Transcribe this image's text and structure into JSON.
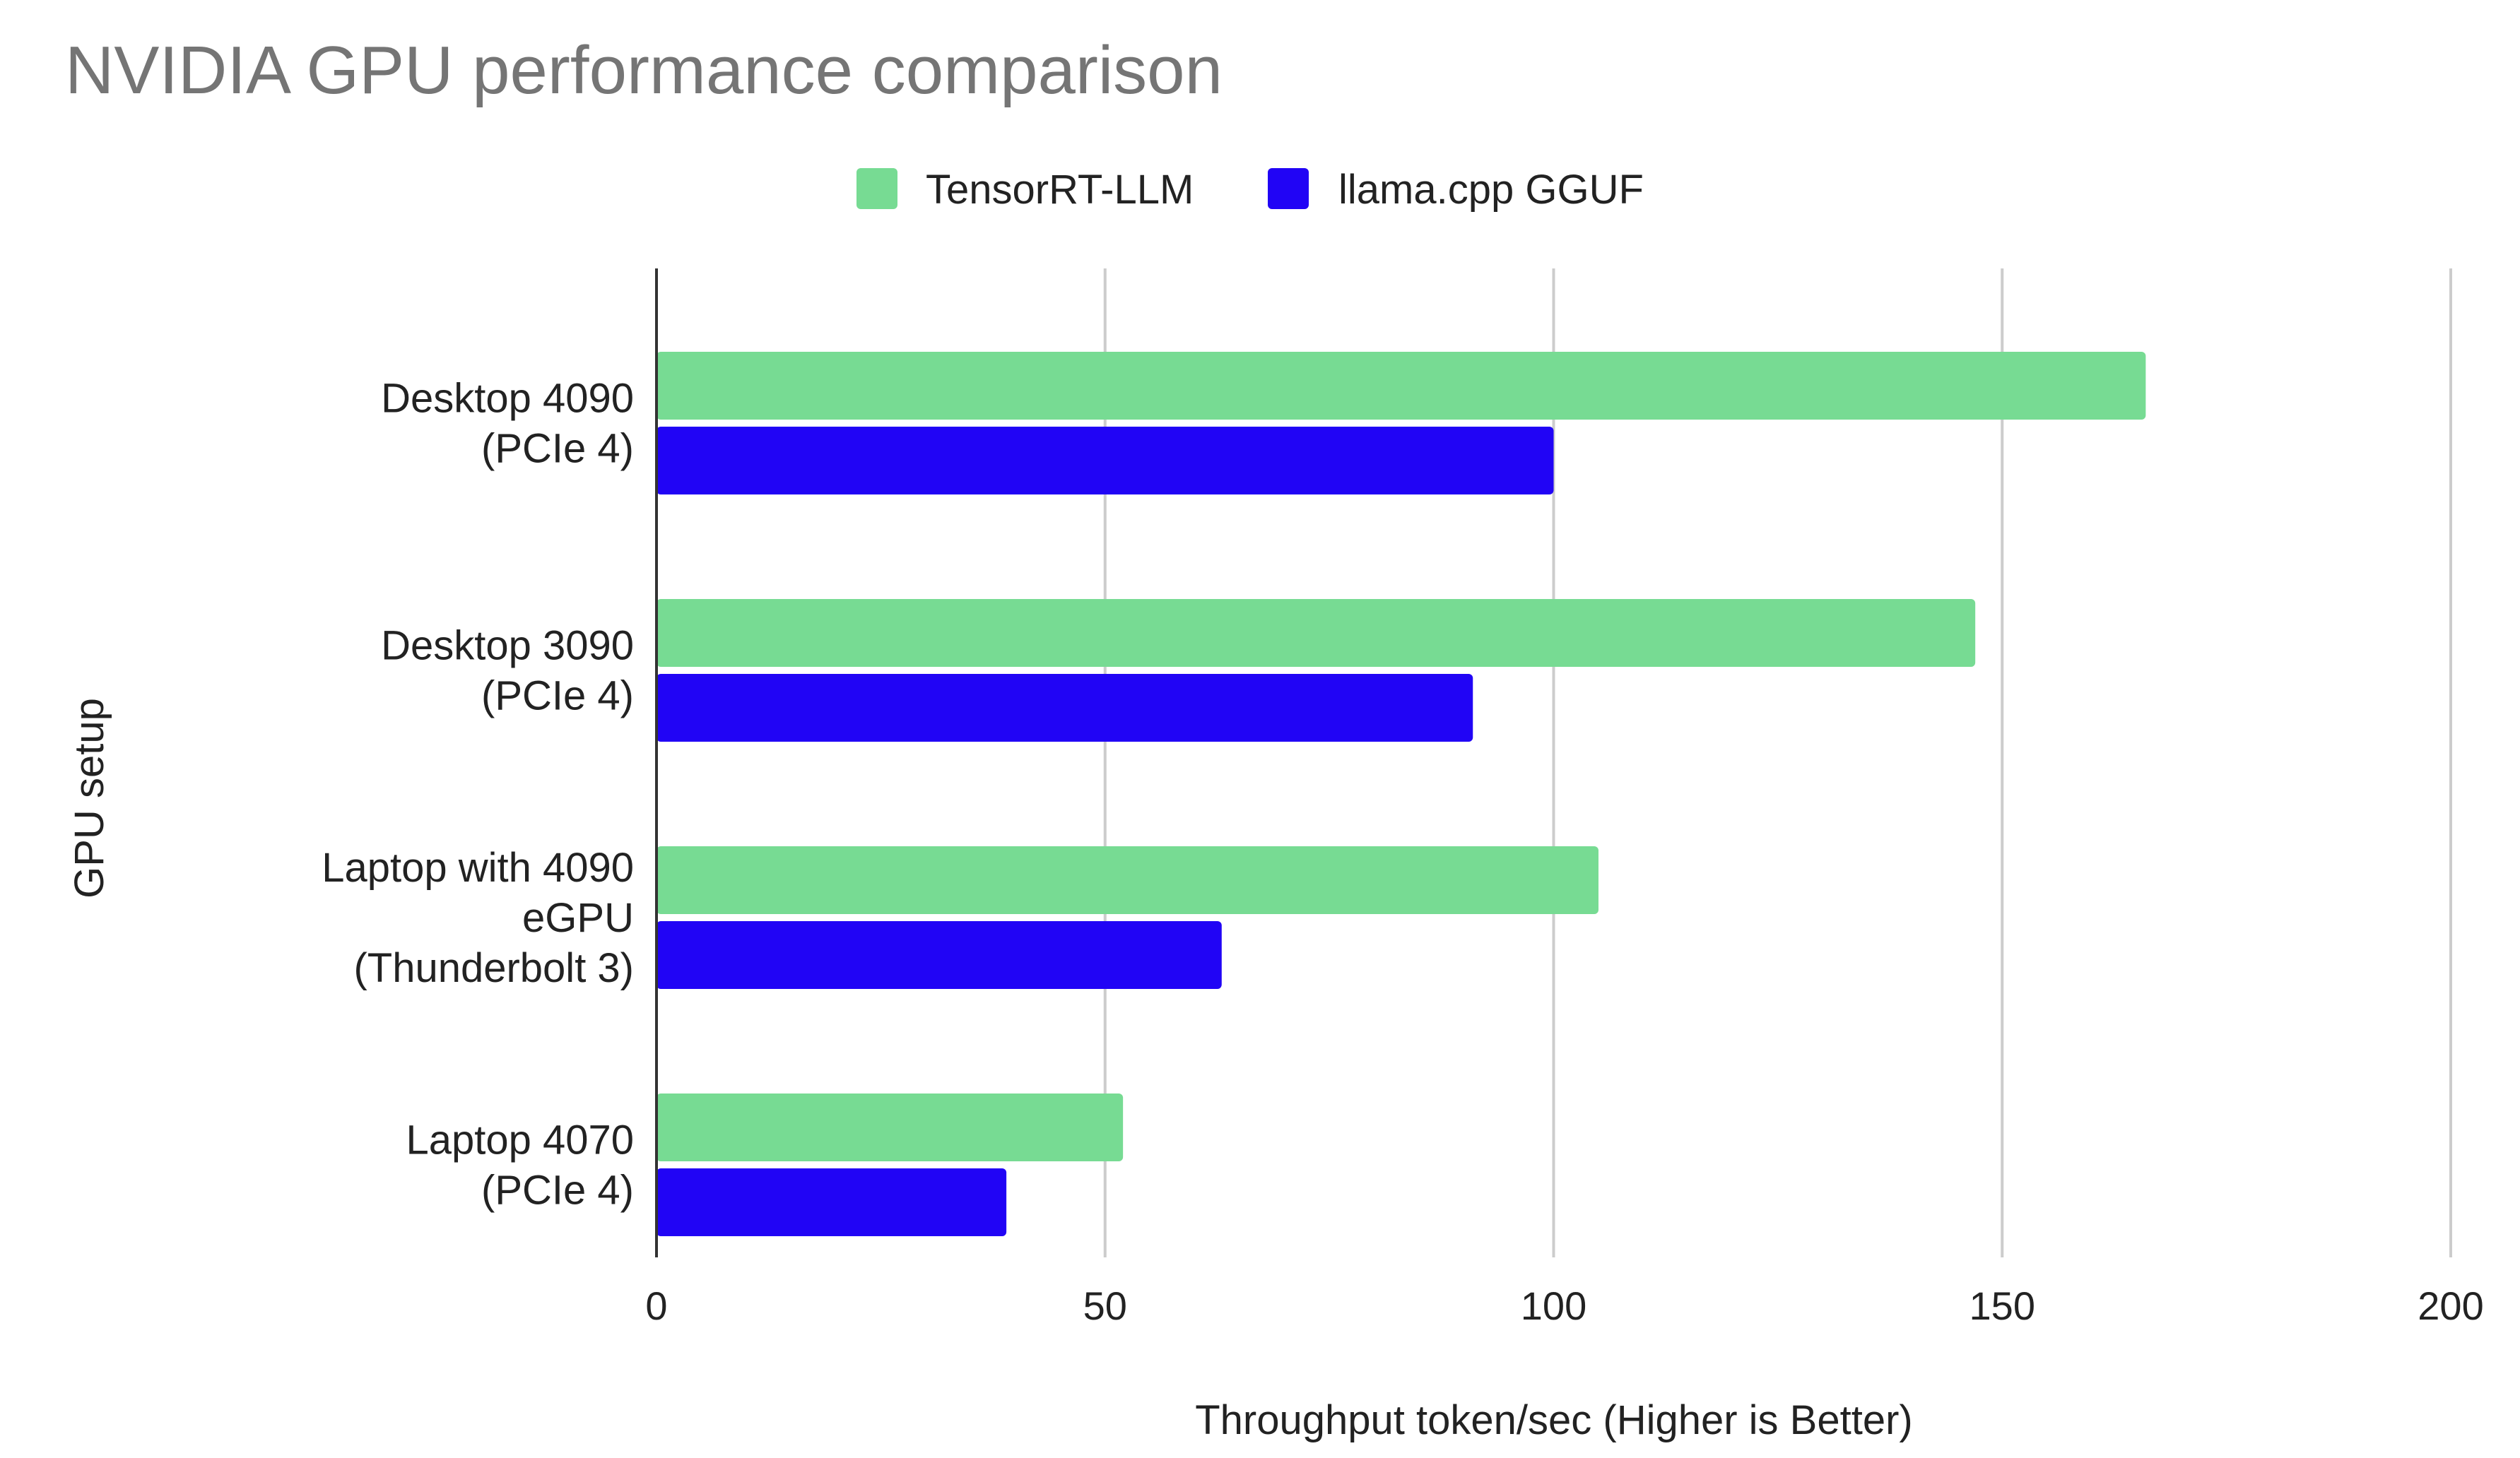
{
  "chart_data": {
    "type": "bar",
    "orientation": "horizontal",
    "title": "NVIDIA GPU performance comparison",
    "xlabel": "Throughput token/sec (Higher is Better)",
    "ylabel": "GPU setup",
    "xlim": [
      0,
      200
    ],
    "x_ticks": [
      "0",
      "50",
      "100",
      "150",
      "200"
    ],
    "grid": "vertical",
    "legend_position": "top",
    "categories": [
      [
        "Desktop 4090",
        "(PCIe 4)"
      ],
      [
        "Desktop 3090",
        "(PCIe 4)"
      ],
      [
        "Laptop with 4090",
        "eGPU",
        "(Thunderbolt 3)"
      ],
      [
        "Laptop 4070",
        "(PCIe 4)"
      ]
    ],
    "series": [
      {
        "name": "TensorRT-LLM",
        "color": "#77db93",
        "values": [
          166,
          147,
          105,
          52
        ]
      },
      {
        "name": "llama.cpp GGUF",
        "color": "#2104f5",
        "values": [
          100,
          91,
          63,
          39
        ]
      }
    ]
  }
}
